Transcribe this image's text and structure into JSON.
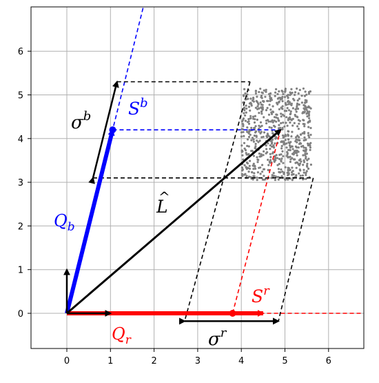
{
  "axes": {
    "x_ticks": [
      "0",
      "1",
      "2",
      "3",
      "4",
      "5",
      "6"
    ],
    "y_ticks": [
      "0",
      "1",
      "2",
      "3",
      "4",
      "5",
      "6"
    ],
    "xlim": [
      -0.8,
      6.85
    ],
    "ylim": [
      -0.8,
      6.85
    ],
    "grid": true
  },
  "colors": {
    "red": "#ff0000",
    "blue": "#0000ff",
    "black": "#000000",
    "gray": "#808080",
    "grid": "#b0b0b0"
  },
  "vectors": {
    "Q_r": {
      "from": [
        0,
        0
      ],
      "to": [
        4.5,
        0
      ]
    },
    "Q_b": {
      "from": [
        0,
        0
      ],
      "to": [
        1.05,
        4.2
      ]
    },
    "L_hat": {
      "from": [
        0,
        0
      ],
      "to": [
        4.9,
        4.2
      ]
    },
    "unit_x": {
      "from": [
        0,
        0
      ],
      "to": [
        1.0,
        0
      ]
    },
    "unit_y": {
      "from": [
        0,
        0
      ],
      "to": [
        0,
        1.0
      ]
    },
    "sigma_b": {
      "from": [
        0.6,
        3.1
      ],
      "to": [
        1.15,
        5.3
      ]
    },
    "sigma_r": {
      "from": [
        2.7,
        -0.18
      ],
      "to": [
        4.85,
        -0.18
      ]
    }
  },
  "points": {
    "S_b": [
      1.05,
      4.2
    ],
    "S_r": [
      3.8,
      0
    ]
  },
  "lines": {
    "blue_line": {
      "from": [
        0,
        0
      ],
      "to": [
        1.75,
        7.0
      ]
    },
    "red_line": {
      "from": [
        3.8,
        0
      ],
      "to": [
        6.85,
        0
      ]
    },
    "red_proj": {
      "from": [
        3.8,
        0
      ],
      "to": [
        4.9,
        4.2
      ]
    },
    "blue_proj": {
      "from": [
        1.05,
        4.2
      ],
      "to": [
        4.9,
        4.2
      ]
    }
  },
  "box": {
    "top": [
      [
        1.15,
        5.3
      ],
      [
        4.2,
        5.3
      ]
    ],
    "bottom": [
      [
        0.6,
        3.1
      ],
      [
        5.65,
        3.1
      ]
    ],
    "left_slant": [
      [
        4.2,
        5.3
      ],
      [
        2.7,
        -0.18
      ]
    ],
    "right_slant": [
      [
        5.65,
        3.1
      ],
      [
        4.85,
        -0.18
      ]
    ]
  },
  "scatter": {
    "x_range": [
      4.0,
      5.6
    ],
    "y_range": [
      3.05,
      5.15
    ],
    "count": 720
  },
  "labels": {
    "Q_b": {
      "main": "Q",
      "sub": "b"
    },
    "Q_r": {
      "main": "Q",
      "sub": "r"
    },
    "S_b": {
      "main": "S",
      "sup": "b"
    },
    "S_r": {
      "main": "S",
      "sup": "r"
    },
    "sigma_b": {
      "main": "σ",
      "sup": "b"
    },
    "sigma_r": {
      "main": "σ",
      "sup": "r"
    },
    "L_hat": {
      "main": "L",
      "accent": "^"
    }
  }
}
